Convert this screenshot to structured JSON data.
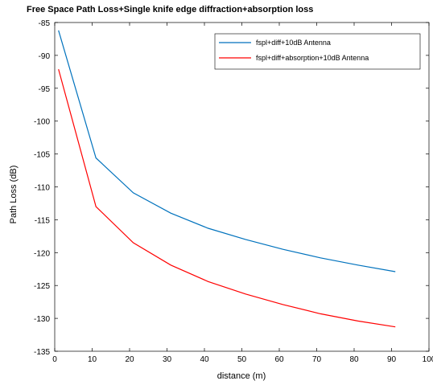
{
  "chart_data": {
    "type": "line",
    "title": "Free Space Path Loss+Single knife edge diffraction+absorption loss",
    "xlabel": "distance (m)",
    "ylabel": "Path Loss (dB)",
    "xlim": [
      0,
      100
    ],
    "ylim": [
      -135,
      -85
    ],
    "xticks": [
      "0",
      "10",
      "20",
      "30",
      "40",
      "50",
      "60",
      "70",
      "80",
      "90",
      "100"
    ],
    "yticks": [
      "-85",
      "-90",
      "-95",
      "-100",
      "-105",
      "-110",
      "-115",
      "-120",
      "-125",
      "-130",
      "-135"
    ],
    "grid": false,
    "legend_position": "top-right",
    "x": [
      1,
      11,
      21,
      31,
      41,
      51,
      61,
      71,
      81,
      91
    ],
    "series": [
      {
        "name": "fspl+diff+10dB Antenna",
        "color": "#0072BD",
        "values": [
          -86.2,
          -105.6,
          -110.9,
          -114.0,
          -116.3,
          -118.0,
          -119.5,
          -120.8,
          -121.9,
          -122.9
        ]
      },
      {
        "name": "fspl+diff+absorption+10dB Antenna",
        "color": "#FF0000",
        "values": [
          -92.1,
          -113.0,
          -118.5,
          -121.9,
          -124.4,
          -126.3,
          -127.9,
          -129.3,
          -130.4,
          -131.3
        ]
      }
    ]
  }
}
